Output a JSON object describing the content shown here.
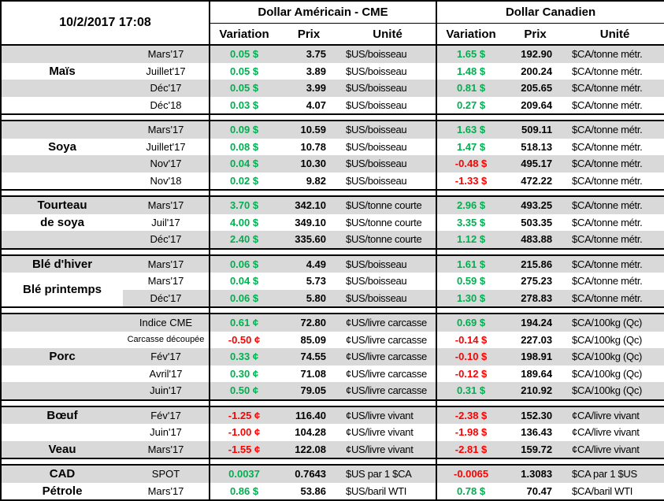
{
  "colors": {
    "positive": "#00B050",
    "negative": "#FF0000",
    "stripe": "#D9D9D9",
    "grid": "#000000"
  },
  "header": {
    "timestamp": "10/2/2017 17:08",
    "usd_group": "Dollar Américain - CME",
    "cad_group": "Dollar Canadien",
    "col_variation": "Variation",
    "col_prix": "Prix",
    "col_unite": "Unité"
  },
  "blocks": [
    {
      "name": "mais",
      "rows": [
        {
          "label": "",
          "date": "Mars'17",
          "us_var": "0.05 $",
          "us_prix": "3.75",
          "us_unit": "$US/boisseau",
          "ca_var": "1.65 $",
          "ca_prix": "192.90",
          "ca_unit": "$CA/tonne métr."
        },
        {
          "label": "Maïs",
          "date": "Juillet'17",
          "us_var": "0.05 $",
          "us_prix": "3.89",
          "us_unit": "$US/boisseau",
          "ca_var": "1.48 $",
          "ca_prix": "200.24",
          "ca_unit": "$CA/tonne métr."
        },
        {
          "label": "",
          "date": "Déc'17",
          "us_var": "0.05 $",
          "us_prix": "3.99",
          "us_unit": "$US/boisseau",
          "ca_var": "0.81 $",
          "ca_prix": "205.65",
          "ca_unit": "$CA/tonne métr."
        },
        {
          "label": "",
          "date": "Déc'18",
          "us_var": "0.03 $",
          "us_prix": "4.07",
          "us_unit": "$US/boisseau",
          "ca_var": "0.27 $",
          "ca_prix": "209.64",
          "ca_unit": "$CA/tonne métr."
        }
      ]
    },
    {
      "name": "soya",
      "rows": [
        {
          "label": "",
          "date": "Mars'17",
          "us_var": "0.09 $",
          "us_prix": "10.59",
          "us_unit": "$US/boisseau",
          "ca_var": "1.63 $",
          "ca_prix": "509.11",
          "ca_unit": "$CA/tonne métr."
        },
        {
          "label": "Soya",
          "date": "Juillet'17",
          "us_var": "0.08 $",
          "us_prix": "10.78",
          "us_unit": "$US/boisseau",
          "ca_var": "1.47 $",
          "ca_prix": "518.13",
          "ca_unit": "$CA/tonne métr."
        },
        {
          "label": "",
          "date": "Nov'17",
          "us_var": "0.04 $",
          "us_prix": "10.30",
          "us_unit": "$US/boisseau",
          "ca_var": "-0.48 $",
          "ca_prix": "495.17",
          "ca_unit": "$CA/tonne métr."
        },
        {
          "label": "",
          "date": "Nov'18",
          "us_var": "0.02 $",
          "us_prix": "9.82",
          "us_unit": "$US/boisseau",
          "ca_var": "-1.33 $",
          "ca_prix": "472.22",
          "ca_unit": "$CA/tonne métr."
        }
      ]
    },
    {
      "name": "tourteau-de-soya",
      "rows": [
        {
          "label": "Tourteau",
          "date": "Mars'17",
          "us_var": "3.70 $",
          "us_prix": "342.10",
          "us_unit": "$US/tonne courte",
          "ca_var": "2.96 $",
          "ca_prix": "493.25",
          "ca_unit": "$CA/tonne métr."
        },
        {
          "label": "de soya",
          "date": "Juil'17",
          "us_var": "4.00 $",
          "us_prix": "349.10",
          "us_unit": "$US/tonne courte",
          "ca_var": "3.35 $",
          "ca_prix": "503.35",
          "ca_unit": "$CA/tonne métr."
        },
        {
          "label": "",
          "date": "Déc'17",
          "us_var": "2.40 $",
          "us_prix": "335.60",
          "us_unit": "$US/tonne courte",
          "ca_var": "1.12 $",
          "ca_prix": "483.88",
          "ca_unit": "$CA/tonne métr."
        }
      ]
    },
    {
      "name": "ble",
      "rows": [
        {
          "label": "Blé d'hiver",
          "date": "Mars'17",
          "us_var": "0.06 $",
          "us_prix": "4.49",
          "us_unit": "$US/boisseau",
          "ca_var": "1.61 $",
          "ca_prix": "215.86",
          "ca_unit": "$CA/tonne métr."
        },
        {
          "label": "Blé printemps",
          "label_rowspan": 2,
          "date": "Mars'17",
          "us_var": "0.04 $",
          "us_prix": "5.73",
          "us_unit": "$US/boisseau",
          "ca_var": "0.59 $",
          "ca_prix": "275.23",
          "ca_unit": "$CA/tonne métr."
        },
        {
          "label_skip": true,
          "date": "Déc'17",
          "us_var": "0.06 $",
          "us_prix": "5.80",
          "us_unit": "$US/boisseau",
          "ca_var": "1.30 $",
          "ca_prix": "278.83",
          "ca_unit": "$CA/tonne métr."
        }
      ]
    },
    {
      "name": "porc",
      "rows": [
        {
          "label": "",
          "date": "Indice CME",
          "us_var": "0.61 ¢",
          "us_prix": "72.80",
          "us_unit": "¢US/livre carcasse",
          "ca_var": "0.69 $",
          "ca_prix": "194.24",
          "ca_unit": "$CA/100kg (Qc)"
        },
        {
          "label": "",
          "date": "Carcasse découpée",
          "date_small": true,
          "us_var": "-0.50 ¢",
          "us_prix": "85.09",
          "us_unit": "¢US/livre carcasse",
          "ca_var": "-0.14 $",
          "ca_prix": "227.03",
          "ca_unit": "$CA/100kg (Qc)"
        },
        {
          "label": "Porc",
          "date": "Fév'17",
          "us_var": "0.33 ¢",
          "us_prix": "74.55",
          "us_unit": "¢US/livre carcasse",
          "ca_var": "-0.10 $",
          "ca_prix": "198.91",
          "ca_unit": "$CA/100kg (Qc)"
        },
        {
          "label": "",
          "date": "Avril'17",
          "us_var": "0.30 ¢",
          "us_prix": "71.08",
          "us_unit": "¢US/livre carcasse",
          "ca_var": "-0.12 $",
          "ca_prix": "189.64",
          "ca_unit": "$CA/100kg (Qc)"
        },
        {
          "label": "",
          "date": "Juin'17",
          "us_var": "0.50 ¢",
          "us_prix": "79.05",
          "us_unit": "¢US/livre carcasse",
          "ca_var": "0.31 $",
          "ca_prix": "210.92",
          "ca_unit": "$CA/100kg (Qc)"
        }
      ]
    },
    {
      "name": "boeuf-veau",
      "rows": [
        {
          "label": "Bœuf",
          "date": "Fév'17",
          "us_var": "-1.25 ¢",
          "us_prix": "116.40",
          "us_unit": "¢US/livre vivant",
          "ca_var": "-2.38 $",
          "ca_prix": "152.30",
          "ca_unit": "¢CA/livre vivant"
        },
        {
          "label": "",
          "date": "Juin'17",
          "us_var": "-1.00 ¢",
          "us_prix": "104.28",
          "us_unit": "¢US/livre vivant",
          "ca_var": "-1.98 $",
          "ca_prix": "136.43",
          "ca_unit": "¢CA/livre vivant"
        },
        {
          "label": "Veau",
          "date": "Mars'17",
          "us_var": "-1.55 ¢",
          "us_prix": "122.08",
          "us_unit": "¢US/livre vivant",
          "ca_var": "-2.81 $",
          "ca_prix": "159.72",
          "ca_unit": "¢CA/livre vivant"
        }
      ]
    },
    {
      "name": "cad-petrole",
      "rows": [
        {
          "label": "CAD",
          "date": "SPOT",
          "us_var": "0.0037",
          "us_prix": "0.7643",
          "us_unit": "$US par 1 $CA",
          "ca_var": "-0.0065",
          "ca_prix": "1.3083",
          "ca_unit": "$CA par 1 $US"
        },
        {
          "label": "Pétrole",
          "date": "Mars'17",
          "us_var": "0.86 $",
          "us_prix": "53.86",
          "us_unit": "$US/baril WTI",
          "ca_var": "0.78 $",
          "ca_prix": "70.47",
          "ca_unit": "$CA/baril WTI"
        }
      ]
    }
  ]
}
